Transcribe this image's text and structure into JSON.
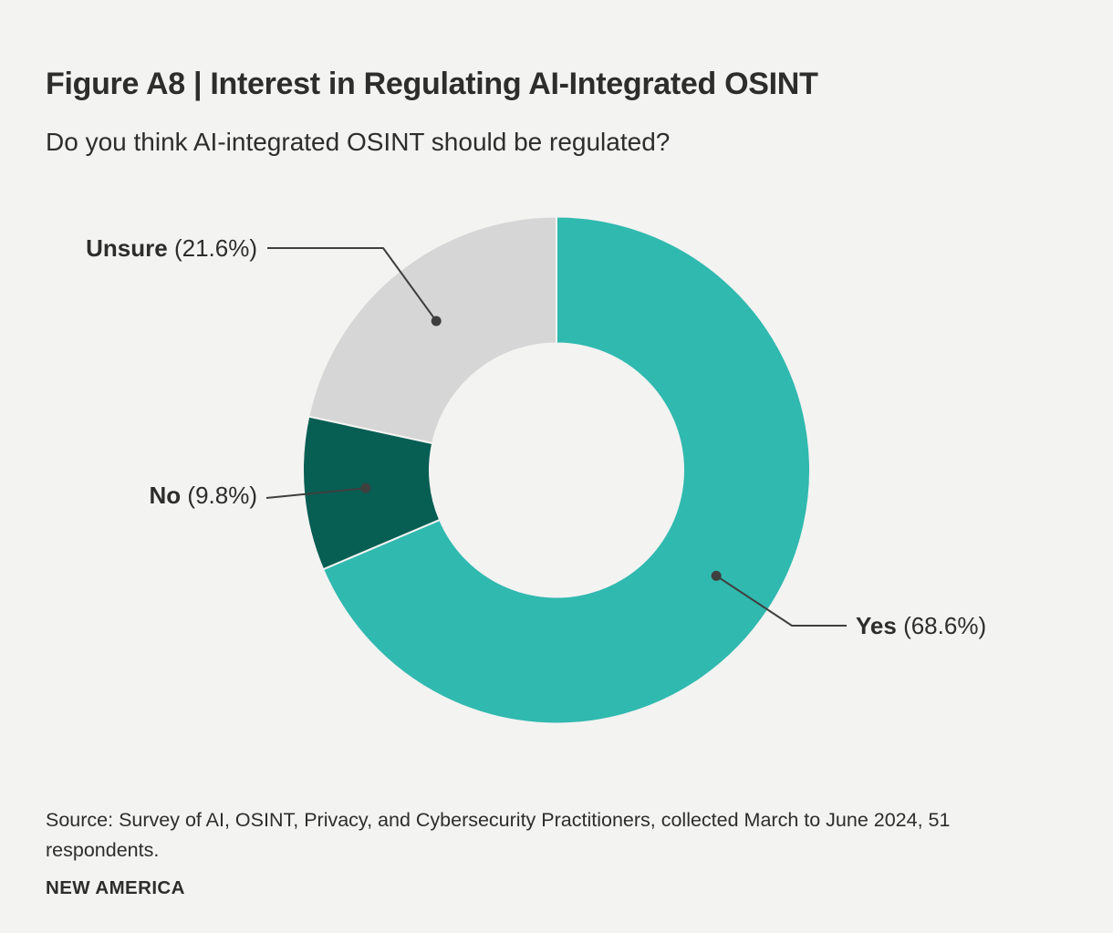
{
  "figure": {
    "title": "Figure A8 | Interest in Regulating AI-Integrated OSINT",
    "subtitle": "Do you think AI-integrated OSINT should be regulated?",
    "source": "Source: Survey of AI, OSINT, Privacy, and Cybersecurity Practitioners, collected March to June 2024, 51 respondents.",
    "brand": "NEW AMERICA"
  },
  "chart_data": {
    "type": "pie",
    "subtype": "donut",
    "title": "Interest in Regulating AI-Integrated OSINT",
    "question": "Do you think AI-integrated OSINT should be regulated?",
    "unit": "%",
    "respondents": "51",
    "start_angle_deg": 0,
    "direction": "clockwise",
    "inner_radius_ratio": 0.5,
    "legend_position": "callout-labels",
    "background_color": "#f3f3f2",
    "leader_line_color": "#3f3f3f",
    "slices": [
      {
        "label": "Yes",
        "value": 68.6,
        "pct_text": "(68.6%)",
        "color": "#30b9af"
      },
      {
        "label": "No",
        "value": 9.8,
        "pct_text": "(9.8%)",
        "color": "#075e53"
      },
      {
        "label": "Unsure",
        "value": 21.6,
        "pct_text": "(21.6%)",
        "color": "#d6d6d6"
      }
    ]
  }
}
